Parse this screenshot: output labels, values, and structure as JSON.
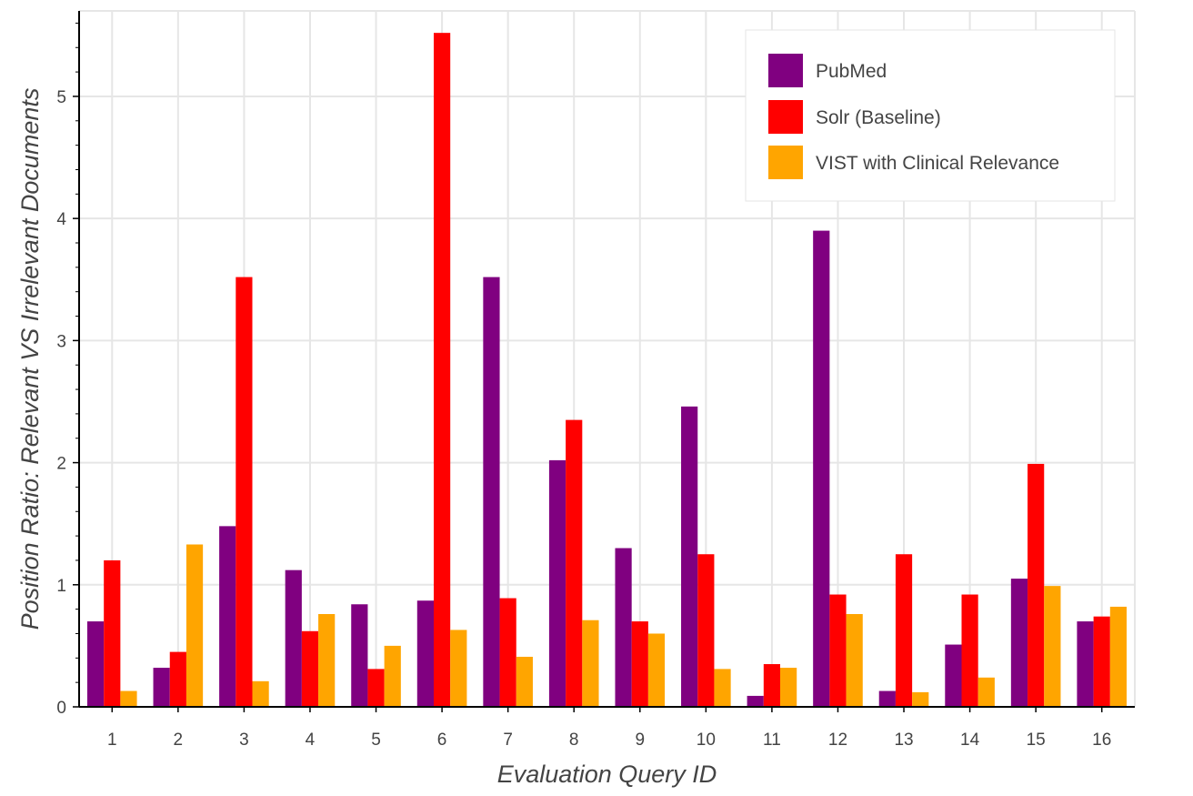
{
  "colors": {
    "series": [
      "#800080",
      "#ff0000",
      "#ffa500"
    ],
    "grid": "#e6e6e6",
    "axis": "#000000"
  },
  "chart_data": {
    "type": "bar",
    "title": "",
    "xlabel": "Evaluation Query ID",
    "ylabel": "Position Ratio: Relevant VS Irrelevant Documents",
    "categories": [
      "1",
      "2",
      "3",
      "4",
      "5",
      "6",
      "7",
      "8",
      "9",
      "10",
      "11",
      "12",
      "13",
      "14",
      "15",
      "16"
    ],
    "ylim": [
      0,
      5.7
    ],
    "yticks": [
      "0",
      "1",
      "2",
      "3",
      "4",
      "5"
    ],
    "grid": true,
    "legend_position": "top-right",
    "series": [
      {
        "name": "PubMed",
        "values": [
          0.7,
          0.32,
          1.48,
          1.12,
          0.84,
          0.87,
          3.52,
          2.02,
          1.3,
          2.46,
          0.09,
          3.9,
          0.13,
          0.51,
          1.05,
          0.7
        ]
      },
      {
        "name": "Solr (Baseline)",
        "values": [
          1.2,
          0.45,
          3.52,
          0.62,
          0.31,
          5.52,
          0.89,
          2.35,
          0.7,
          1.25,
          0.35,
          0.92,
          1.25,
          0.92,
          1.99,
          0.74
        ]
      },
      {
        "name": "VIST with Clinical Relevance",
        "values": [
          0.13,
          1.33,
          0.21,
          0.76,
          0.5,
          0.63,
          0.41,
          0.71,
          0.6,
          0.31,
          0.32,
          0.76,
          0.12,
          0.24,
          0.99,
          0.82
        ]
      }
    ]
  }
}
